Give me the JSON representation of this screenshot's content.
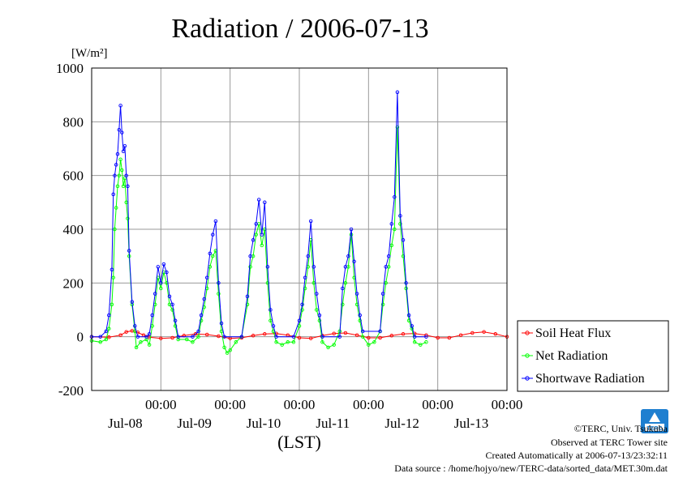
{
  "chart_data": {
    "type": "line",
    "title": "Radiation / 2006-07-13",
    "ylabel_unit": "[W/m²]",
    "xlabel": "(LST)",
    "ylim": [
      -200,
      1000
    ],
    "yticks": [
      -200,
      0,
      200,
      400,
      600,
      800,
      1000
    ],
    "xlim": [
      0,
      144
    ],
    "xticks": [
      {
        "x": 24,
        "time": "00:00",
        "date": "Jul-08"
      },
      {
        "x": 48,
        "time": "00:00",
        "date": "Jul-09"
      },
      {
        "x": 72,
        "time": "00:00",
        "date": "Jul-10"
      },
      {
        "x": 96,
        "time": "00:00",
        "date": "Jul-11"
      },
      {
        "x": 120,
        "time": "00:00",
        "date": "Jul-12"
      },
      {
        "x": 144,
        "time": "00:00",
        "date": "Jul-13"
      }
    ],
    "grid": true,
    "legend_position": "right",
    "series": [
      {
        "name": "Soil Heat Flux",
        "color": "#ff0000",
        "marker": "circle",
        "points": [
          [
            0,
            0
          ],
          [
            6,
            -2
          ],
          [
            10,
            6
          ],
          [
            12,
            18
          ],
          [
            14,
            22
          ],
          [
            16,
            16
          ],
          [
            18,
            6
          ],
          [
            20,
            -2
          ],
          [
            24,
            -6
          ],
          [
            28,
            -4
          ],
          [
            32,
            4
          ],
          [
            36,
            10
          ],
          [
            40,
            8
          ],
          [
            44,
            2
          ],
          [
            48,
            -6
          ],
          [
            52,
            -4
          ],
          [
            56,
            4
          ],
          [
            60,
            10
          ],
          [
            64,
            12
          ],
          [
            68,
            6
          ],
          [
            72,
            -4
          ],
          [
            76,
            -6
          ],
          [
            80,
            4
          ],
          [
            84,
            12
          ],
          [
            88,
            14
          ],
          [
            92,
            6
          ],
          [
            96,
            -4
          ],
          [
            100,
            -4
          ],
          [
            104,
            4
          ],
          [
            108,
            10
          ],
          [
            112,
            12
          ],
          [
            116,
            6
          ],
          [
            120,
            -4
          ],
          [
            124,
            -4
          ],
          [
            128,
            6
          ],
          [
            132,
            14
          ],
          [
            136,
            18
          ],
          [
            140,
            10
          ],
          [
            144,
            0
          ]
        ]
      },
      {
        "name": "Net Radiation",
        "color": "#00ff00",
        "marker": "circle",
        "points": [
          [
            0,
            -15
          ],
          [
            3,
            -20
          ],
          [
            5,
            -10
          ],
          [
            6,
            30
          ],
          [
            7,
            120
          ],
          [
            7.5,
            220
          ],
          [
            8,
            400
          ],
          [
            8.5,
            480
          ],
          [
            9,
            560
          ],
          [
            9.5,
            600
          ],
          [
            10,
            660
          ],
          [
            10.5,
            620
          ],
          [
            11,
            560
          ],
          [
            11.5,
            590
          ],
          [
            12,
            500
          ],
          [
            12.5,
            440
          ],
          [
            13,
            300
          ],
          [
            14,
            120
          ],
          [
            15,
            20
          ],
          [
            15.5,
            -40
          ],
          [
            17,
            -20
          ],
          [
            19,
            -10
          ],
          [
            20,
            -30
          ],
          [
            21,
            40
          ],
          [
            22,
            120
          ],
          [
            23,
            220
          ],
          [
            24,
            180
          ],
          [
            25,
            240
          ],
          [
            26,
            200
          ],
          [
            27,
            120
          ],
          [
            28,
            100
          ],
          [
            29,
            40
          ],
          [
            30,
            -10
          ],
          [
            33,
            -10
          ],
          [
            35,
            -20
          ],
          [
            37,
            0
          ],
          [
            38,
            60
          ],
          [
            39,
            110
          ],
          [
            40,
            180
          ],
          [
            41,
            260
          ],
          [
            42,
            300
          ],
          [
            43,
            320
          ],
          [
            44,
            160
          ],
          [
            45,
            20
          ],
          [
            46,
            -40
          ],
          [
            47,
            -60
          ],
          [
            48,
            -50
          ],
          [
            50,
            -20
          ],
          [
            52,
            0
          ],
          [
            54,
            120
          ],
          [
            55,
            260
          ],
          [
            56,
            300
          ],
          [
            57,
            380
          ],
          [
            58,
            420
          ],
          [
            59,
            340
          ],
          [
            60,
            400
          ],
          [
            61,
            200
          ],
          [
            62,
            60
          ],
          [
            63,
            20
          ],
          [
            64,
            -20
          ],
          [
            66,
            -30
          ],
          [
            68,
            -20
          ],
          [
            70,
            -20
          ],
          [
            72,
            40
          ],
          [
            73,
            100
          ],
          [
            74,
            180
          ],
          [
            75,
            260
          ],
          [
            76,
            360
          ],
          [
            77,
            200
          ],
          [
            78,
            100
          ],
          [
            79,
            60
          ],
          [
            80,
            -20
          ],
          [
            82,
            -40
          ],
          [
            84,
            -30
          ],
          [
            86,
            20
          ],
          [
            87,
            120
          ],
          [
            88,
            200
          ],
          [
            89,
            260
          ],
          [
            90,
            380
          ],
          [
            91,
            220
          ],
          [
            92,
            120
          ],
          [
            93,
            60
          ],
          [
            94,
            0
          ],
          [
            96,
            -30
          ],
          [
            98,
            -20
          ],
          [
            100,
            20
          ],
          [
            101,
            120
          ],
          [
            102,
            200
          ],
          [
            103,
            260
          ],
          [
            104,
            340
          ],
          [
            105,
            400
          ],
          [
            106,
            780
          ],
          [
            107,
            420
          ],
          [
            108,
            300
          ],
          [
            109,
            180
          ],
          [
            110,
            60
          ],
          [
            111,
            30
          ],
          [
            112,
            -20
          ],
          [
            114,
            -30
          ],
          [
            116,
            -20
          ]
        ]
      },
      {
        "name": "Shortwave Radiation",
        "color": "#0000ff",
        "marker": "circle",
        "points": [
          [
            0,
            0
          ],
          [
            3,
            0
          ],
          [
            5,
            20
          ],
          [
            6,
            80
          ],
          [
            7,
            250
          ],
          [
            7.5,
            530
          ],
          [
            8,
            600
          ],
          [
            8.5,
            640
          ],
          [
            9,
            680
          ],
          [
            9.5,
            770
          ],
          [
            10,
            860
          ],
          [
            10.5,
            760
          ],
          [
            11,
            690
          ],
          [
            11.5,
            710
          ],
          [
            12,
            600
          ],
          [
            12.5,
            560
          ],
          [
            13,
            320
          ],
          [
            14,
            130
          ],
          [
            15,
            40
          ],
          [
            16,
            0
          ],
          [
            19,
            0
          ],
          [
            20,
            10
          ],
          [
            21,
            80
          ],
          [
            22,
            160
          ],
          [
            23,
            260
          ],
          [
            24,
            200
          ],
          [
            25,
            270
          ],
          [
            26,
            240
          ],
          [
            27,
            150
          ],
          [
            28,
            120
          ],
          [
            29,
            60
          ],
          [
            30,
            0
          ],
          [
            35,
            0
          ],
          [
            37,
            20
          ],
          [
            38,
            80
          ],
          [
            39,
            140
          ],
          [
            40,
            220
          ],
          [
            41,
            310
          ],
          [
            42,
            380
          ],
          [
            43,
            430
          ],
          [
            44,
            200
          ],
          [
            45,
            50
          ],
          [
            46,
            0
          ],
          [
            52,
            0
          ],
          [
            54,
            150
          ],
          [
            55,
            300
          ],
          [
            56,
            360
          ],
          [
            57,
            420
          ],
          [
            58,
            510
          ],
          [
            59,
            380
          ],
          [
            60,
            500
          ],
          [
            61,
            260
          ],
          [
            62,
            100
          ],
          [
            63,
            40
          ],
          [
            64,
            0
          ],
          [
            70,
            0
          ],
          [
            72,
            60
          ],
          [
            73,
            120
          ],
          [
            74,
            220
          ],
          [
            75,
            300
          ],
          [
            76,
            430
          ],
          [
            77,
            260
          ],
          [
            78,
            160
          ],
          [
            79,
            80
          ],
          [
            80,
            0
          ],
          [
            86,
            0
          ],
          [
            87,
            180
          ],
          [
            88,
            260
          ],
          [
            89,
            300
          ],
          [
            90,
            400
          ],
          [
            91,
            280
          ],
          [
            92,
            160
          ],
          [
            93,
            80
          ],
          [
            94,
            20
          ],
          [
            100,
            20
          ],
          [
            101,
            160
          ],
          [
            102,
            260
          ],
          [
            103,
            300
          ],
          [
            104,
            420
          ],
          [
            105,
            520
          ],
          [
            106,
            910
          ],
          [
            107,
            450
          ],
          [
            108,
            360
          ],
          [
            109,
            200
          ],
          [
            110,
            80
          ],
          [
            111,
            40
          ],
          [
            112,
            0
          ],
          [
            116,
            0
          ]
        ]
      }
    ]
  },
  "footer": {
    "copyright": "©TERC, Univ. Tsukuba",
    "observed": "Observed at TERC Tower site",
    "created": "Created Automatically at 2006-07-13/23:32:11",
    "source": "Data source : /home/hojyo/new/TERC-data/sorted_data/MET.30m.dat"
  },
  "logo": {
    "text": "TERC",
    "color": "#1e7fd0"
  }
}
